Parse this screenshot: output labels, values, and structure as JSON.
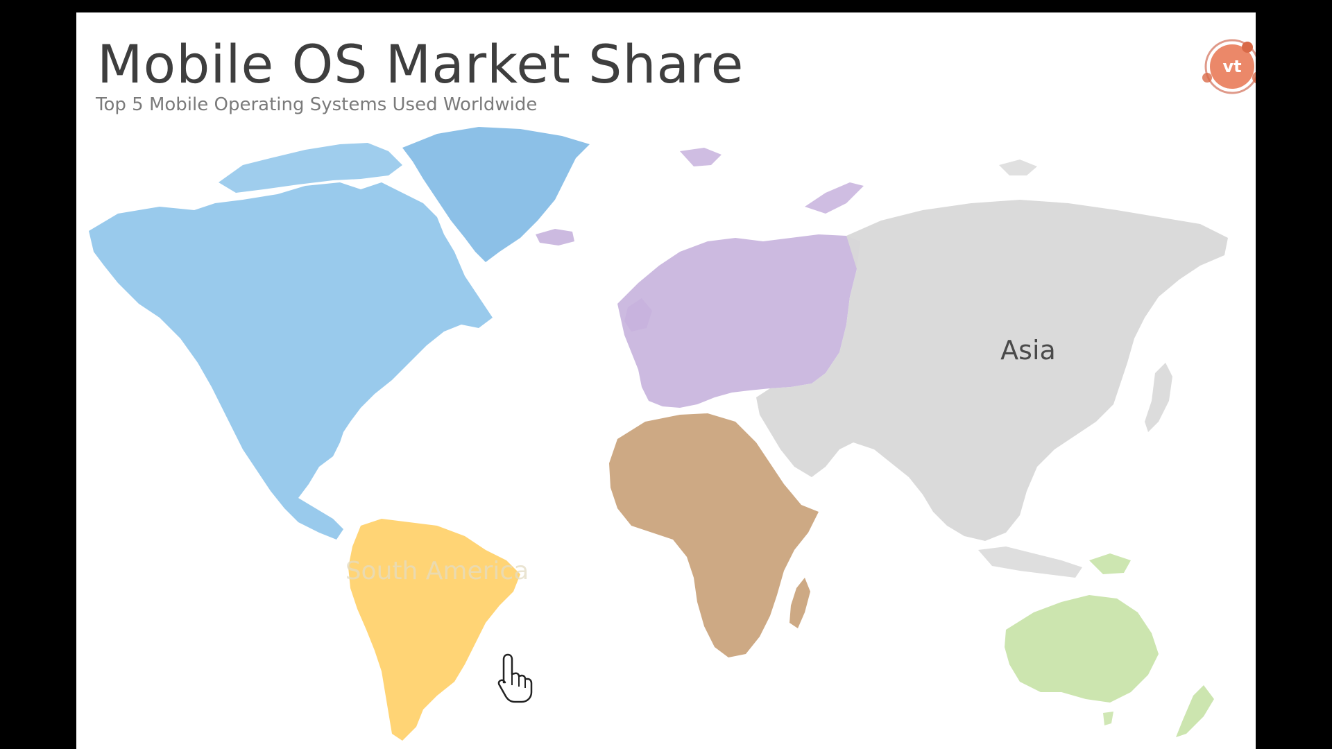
{
  "slide": {
    "title": "Mobile OS Market Share",
    "subtitle": "Top 5 Mobile Operating Systems Used Worldwide"
  },
  "logo": {
    "mark": "vt",
    "icon": "videotutorials-logo-icon"
  },
  "map": {
    "regions": [
      {
        "id": "north-america",
        "color": "#8ec4ea"
      },
      {
        "id": "south-america",
        "label": "South America",
        "color": "#ffd069",
        "label_style": "faded"
      },
      {
        "id": "europe",
        "color": "#c7b2dd"
      },
      {
        "id": "africa",
        "color": "#c9a27a"
      },
      {
        "id": "asia",
        "label": "Asia",
        "color": "#d8d8d8"
      },
      {
        "id": "oceania",
        "color": "#c8e3a8"
      }
    ]
  },
  "cursor": {
    "icon": "hand-pointer-icon"
  }
}
